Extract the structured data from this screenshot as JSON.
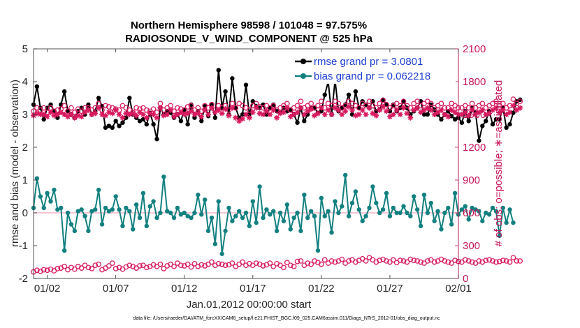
{
  "chart_data": {
    "type": "line",
    "title": "Northern Hemisphere 98598 / 101048 = 97.575%",
    "subtitle": "RADIOSONDE_V_WIND_COMPONENT @ 525 hPa",
    "xlabel": "Jan.01,2012 00:00:00 start",
    "ylabel": "rmse and bias (model - observation)",
    "ylabel_right": "# of obs: o=possible; ∗=assimilated",
    "xlim": [
      0,
      31
    ],
    "ylim": [
      -2,
      5
    ],
    "ylim_right": [
      0,
      2100
    ],
    "x_ticks": [
      {
        "value": 1,
        "label": "01/02"
      },
      {
        "value": 6,
        "label": "01/07"
      },
      {
        "value": 11,
        "label": "01/12"
      },
      {
        "value": 16,
        "label": "01/17"
      },
      {
        "value": 21,
        "label": "01/22"
      },
      {
        "value": 26,
        "label": "01/27"
      },
      {
        "value": 31,
        "label": "02/01"
      }
    ],
    "y_ticks": [
      {
        "value": -2,
        "label": "-2"
      },
      {
        "value": -1,
        "label": "-1"
      },
      {
        "value": 0,
        "label": "0"
      },
      {
        "value": 1,
        "label": "1"
      },
      {
        "value": 2,
        "label": "2"
      },
      {
        "value": 3,
        "label": "3"
      },
      {
        "value": 4,
        "label": "4"
      },
      {
        "value": 5,
        "label": "5"
      }
    ],
    "y_ticks_right": [
      {
        "value": 0,
        "label": "0"
      },
      {
        "value": 300,
        "label": "300"
      },
      {
        "value": 600,
        "label": "600"
      },
      {
        "value": 900,
        "label": "900"
      },
      {
        "value": 1200,
        "label": "1200"
      },
      {
        "value": 1500,
        "label": "1500"
      },
      {
        "value": 1800,
        "label": "1800"
      },
      {
        "value": 2100,
        "label": "2100"
      }
    ],
    "legend": [
      {
        "label": "rmse grand pr = 3.0801",
        "color": "#000000"
      },
      {
        "label": "bias grand pr = 0.062218",
        "color": "#138080"
      }
    ],
    "legend_position": "top-right",
    "footnote": "data file: /Users/raeder/DAI/ATM_forcXX/CAM6_setup/f.e21.FHIST_BGC.f09_025.CAM6assim.011/Diags_NTrS_2012-01/obs_diag_output.nc",
    "x_step": 0.25,
    "x_start": 0,
    "series": [
      {
        "name": "rmse",
        "axis": "left",
        "color": "#000000",
        "marker": "dot",
        "values": [
          3.3,
          3.85,
          3.2,
          2.85,
          3.2,
          3.3,
          3.1,
          2.9,
          3.3,
          3.7,
          3.1,
          3.0,
          2.9,
          3.1,
          3.2,
          3.0,
          3.3,
          3.0,
          3.1,
          3.5,
          3.25,
          2.6,
          2.65,
          2.6,
          2.8,
          2.65,
          2.75,
          2.9,
          3.5,
          3.0,
          2.9,
          2.8,
          2.85,
          2.7,
          3.05,
          2.7,
          2.25,
          3.2,
          3.0,
          3.1,
          3.05,
          2.9,
          3.0,
          2.8,
          3.15,
          2.7,
          3.3,
          2.9,
          3.1,
          2.8,
          3.25,
          2.95,
          3.3,
          2.9,
          4.35,
          3.2,
          3.7,
          3.0,
          4.1,
          3.2,
          2.9,
          3.0,
          3.9,
          3.0,
          3.4,
          3.25,
          3.2,
          3.3,
          3.0,
          3.2,
          3.3,
          3.1,
          3.05,
          3.2,
          3.1,
          3.15,
          3.0,
          2.75,
          3.2,
          2.8,
          3.0,
          3.2,
          3.2,
          3.05,
          3.1,
          3.6,
          4.0,
          3.0,
          4.05,
          3.1,
          3.2,
          3.3,
          3.6,
          3.0,
          3.7,
          3.2,
          3.4,
          3.3,
          3.2,
          3.4,
          3.1,
          3.15,
          3.45,
          3.3,
          3.1,
          3.3,
          3.1,
          3.2,
          3.4,
          3.2,
          3.0,
          3.1,
          3.2,
          3.4,
          3.0,
          3.0,
          3.3,
          3.15,
          3.0,
          2.85,
          3.0,
          3.1,
          2.95,
          2.85,
          2.9,
          2.75,
          3.1,
          2.8,
          3.2,
          3.05,
          2.2,
          2.65,
          2.8,
          3.1,
          2.7,
          2.85,
          2.85,
          3.2,
          2.6,
          2.7,
          3.05,
          3.4,
          3.45
        ]
      },
      {
        "name": "bias",
        "axis": "left",
        "color": "#138080",
        "marker": "dot",
        "values": [
          0.15,
          1.05,
          0.5,
          0.15,
          0.6,
          0.35,
          0.7,
          0.1,
          0.15,
          -1.15,
          0.0,
          -0.35,
          -0.55,
          0.05,
          0.1,
          -0.1,
          -0.55,
          0.05,
          0.1,
          0.7,
          -0.35,
          0.15,
          0.05,
          0.1,
          0.5,
          0.1,
          -0.4,
          0.15,
          0.05,
          -0.5,
          0.25,
          -0.15,
          0.6,
          -0.4,
          0.2,
          0.35,
          -0.15,
          0.0,
          1.1,
          0.05,
          0.0,
          -0.15,
          0.15,
          -0.05,
          0.0,
          -0.1,
          -0.15,
          0.0,
          0.55,
          -0.05,
          0.4,
          -0.55,
          -0.15,
          -0.95,
          0.35,
          -1.25,
          -0.55,
          0.15,
          -0.25,
          -0.1,
          0.05,
          -0.15,
          0.0,
          -0.4,
          0.35,
          -0.3,
          0.8,
          -0.15,
          0.1,
          -0.05,
          0.05,
          -0.55,
          0.0,
          -0.25,
          0.25,
          -0.5,
          -0.15,
          0.0,
          -0.55,
          0.55,
          -0.15,
          0.05,
          -0.1,
          -1.15,
          0.45,
          -0.1,
          0.05,
          -0.6,
          0.35,
          0.0,
          0.2,
          1.15,
          -0.1,
          0.3,
          0.65,
          0.1,
          -0.25,
          -0.1,
          0.15,
          0.8,
          0.3,
          0.0,
          0.1,
          0.6,
          -0.1,
          0.15,
          0.0,
          0.0,
          0.2,
          0.0,
          -0.1,
          0.5,
          0.1,
          -0.4,
          0.55,
          0.0,
          0.3,
          -0.25,
          0.05,
          -0.5,
          0.0,
          0.15,
          -0.35,
          0.6,
          -0.05,
          0.1,
          0.2,
          -0.2,
          0.15,
          0.1,
          0.05,
          -0.25,
          0.0,
          -0.05,
          0.15,
          0.05,
          -0.7,
          0.15,
          -0.3,
          0.1,
          -0.3
        ]
      },
      {
        "name": "possible",
        "axis": "right",
        "color": "#d81b60",
        "marker": "circle",
        "values": [
          1530,
          1560,
          1540,
          1560,
          1520,
          1560,
          1530,
          1540,
          1550,
          1580,
          1530,
          1560,
          1520,
          1550,
          1530,
          1560,
          1560,
          1540,
          1560,
          1600,
          1540,
          1580,
          1570,
          1560,
          1550,
          1540,
          1580,
          1560,
          1540,
          1520,
          1560,
          1550,
          1560,
          1540,
          1530,
          1550,
          1520,
          1600,
          1540,
          1560,
          1580,
          1530,
          1560,
          1550,
          1540,
          1570,
          1580,
          1540,
          1560,
          1530,
          1580,
          1560,
          1590,
          1540,
          1580,
          1560,
          1580,
          1540,
          1600,
          1560,
          1600,
          1580,
          1560,
          1540,
          1580,
          1600,
          1570,
          1560,
          1580,
          1560,
          1580,
          1540,
          1560,
          1580,
          1600,
          1540,
          1560,
          1580,
          1620,
          1560,
          1580,
          1600,
          1560,
          1580,
          1620,
          1560,
          1600,
          1580,
          1620,
          1600,
          1560,
          1580,
          1620,
          1600,
          1580,
          1560,
          1600,
          1580,
          1620,
          1580,
          1560,
          1600,
          1630,
          1590,
          1560,
          1580,
          1600,
          1580,
          1620,
          1580,
          1560,
          1600,
          1620,
          1580,
          1600,
          1620,
          1600,
          1560,
          1580,
          1600,
          1560,
          1560,
          1600,
          1580,
          1560,
          1560,
          1580,
          1560,
          1600,
          1560,
          1580,
          1600,
          1560,
          1580,
          1600,
          1620,
          1580,
          1600,
          1560,
          1580,
          1640,
          1600,
          1620
        ]
      },
      {
        "name": "assimilated",
        "axis": "right",
        "color": "#d81b60",
        "marker": "star",
        "values": [
          1490,
          1510,
          1500,
          1500,
          1480,
          1520,
          1490,
          1500,
          1520,
          1500,
          1480,
          1500,
          1470,
          1490,
          1480,
          1520,
          1540,
          1500,
          1510,
          1560,
          1500,
          1490,
          1520,
          1510,
          1540,
          1500,
          1470,
          1510,
          1500,
          1510,
          1490,
          1520,
          1500,
          1470,
          1510,
          1500,
          1470,
          1560,
          1490,
          1500,
          1540,
          1480,
          1500,
          1520,
          1500,
          1510,
          1530,
          1500,
          1510,
          1480,
          1540,
          1500,
          1560,
          1520,
          1540,
          1510,
          1550,
          1490,
          1560,
          1470,
          1440,
          1460,
          1500,
          1470,
          1520,
          1560,
          1510,
          1500,
          1530,
          1500,
          1540,
          1470,
          1510,
          1520,
          1560,
          1480,
          1500,
          1520,
          1560,
          1500,
          1530,
          1550,
          1490,
          1510,
          1560,
          1500,
          1540,
          1500,
          1560,
          1540,
          1500,
          1530,
          1570,
          1540,
          1490,
          1500,
          1540,
          1500,
          1560,
          1510,
          1490,
          1540,
          1570,
          1530,
          1480,
          1500,
          1540,
          1500,
          1560,
          1510,
          1470,
          1540,
          1560,
          1520,
          1540,
          1560,
          1540,
          1500,
          1520,
          1540,
          1500,
          1480,
          1540,
          1520,
          1500,
          1500,
          1520,
          1490,
          1540,
          1500,
          1520,
          1540,
          1500,
          1510,
          1540,
          1560,
          1520,
          1540,
          1500,
          1520,
          1580,
          1540,
          1560
        ]
      },
      {
        "name": "possible-low",
        "axis": "right",
        "color": "#d81b60",
        "marker": "circle",
        "values": [
          60,
          75,
          65,
          80,
          75,
          85,
          70,
          90,
          95,
          110,
          80,
          100,
          85,
          110,
          95,
          120,
          100,
          90,
          120,
          130,
          80,
          95,
          115,
          140,
          90,
          100,
          85,
          105,
          120,
          110,
          95,
          115,
          120,
          100,
          110,
          125,
          110,
          130,
          90,
          115,
          130,
          110,
          140,
          120,
          115,
          130,
          105,
          135,
          110,
          125,
          115,
          130,
          150,
          120,
          135,
          130,
          120,
          125,
          140,
          110,
          130,
          150,
          120,
          135,
          120,
          140,
          130,
          115,
          125,
          140,
          110,
          135,
          120,
          100,
          145,
          120,
          110,
          155,
          160,
          120,
          140,
          130,
          160,
          145,
          130,
          170,
          140,
          160,
          150,
          160,
          175,
          140,
          160,
          170,
          150,
          165,
          180,
          160,
          190,
          170,
          150,
          165,
          175,
          160,
          150,
          170,
          145,
          165,
          160,
          150,
          175,
          165,
          160,
          150,
          140,
          160,
          170,
          150,
          160,
          175,
          160,
          150,
          140,
          165,
          155,
          150,
          170,
          160,
          150,
          140,
          160,
          150,
          165,
          170,
          160,
          150,
          155,
          165,
          160,
          150,
          190,
          160,
          160
        ]
      }
    ]
  }
}
